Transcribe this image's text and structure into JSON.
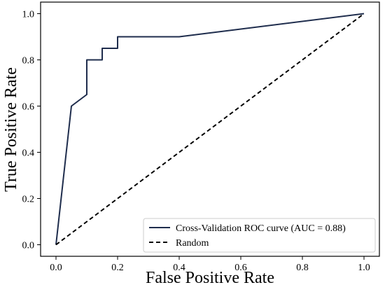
{
  "chart_data": {
    "type": "line",
    "xlabel": "False Positive Rate",
    "ylabel": "True Positive Rate",
    "xlim": [
      -0.05,
      1.05
    ],
    "ylim": [
      -0.05,
      1.05
    ],
    "xticks": [
      "0.0",
      "0.2",
      "0.4",
      "0.6",
      "0.8",
      "1.0"
    ],
    "yticks": [
      "0.0",
      "0.2",
      "0.4",
      "0.6",
      "0.8",
      "1.0"
    ],
    "grid": false,
    "legend_position": "bottom-right",
    "series": [
      {
        "name": "Cross-Validation ROC curve (AUC = 0.88)",
        "color": "#1f2d4d",
        "style": "solid",
        "x": [
          0.0,
          0.05,
          0.1,
          0.1,
          0.15,
          0.15,
          0.2,
          0.2,
          0.4,
          1.0
        ],
        "y": [
          0.0,
          0.6,
          0.65,
          0.8,
          0.8,
          0.85,
          0.85,
          0.9,
          0.9,
          1.0
        ]
      },
      {
        "name": "Random",
        "color": "#000000",
        "style": "dashed",
        "x": [
          0.0,
          1.0
        ],
        "y": [
          0.0,
          1.0
        ]
      }
    ]
  }
}
